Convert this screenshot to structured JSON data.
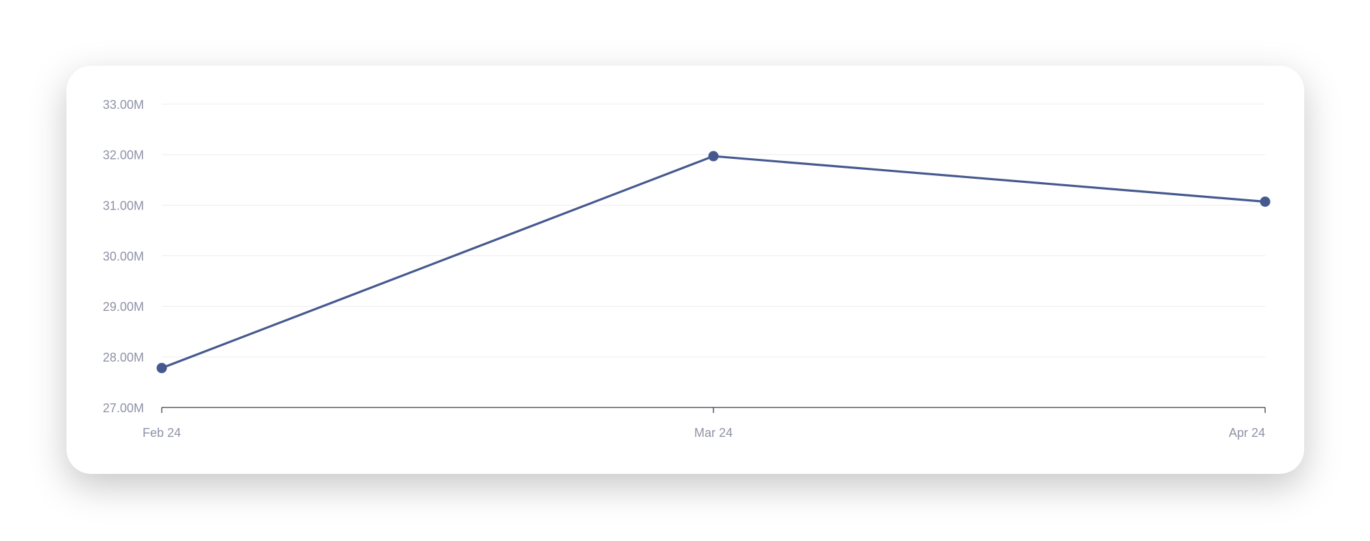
{
  "chart_data": {
    "type": "line",
    "categories": [
      "Feb 24",
      "Mar 24",
      "Apr 24"
    ],
    "series": [
      {
        "color": "#46598f",
        "values": [
          27780000,
          31970000,
          31070000
        ]
      }
    ],
    "ylim": [
      27000000,
      33000000
    ],
    "yticks": [
      {
        "value": 27000000,
        "label": "27.00M"
      },
      {
        "value": 28000000,
        "label": "28.00M"
      },
      {
        "value": 29000000,
        "label": "29.00M"
      },
      {
        "value": 30000000,
        "label": "30.00M"
      },
      {
        "value": 31000000,
        "label": "31.00M"
      },
      {
        "value": 32000000,
        "label": "32.00M"
      },
      {
        "value": 33000000,
        "label": "33.00M"
      }
    ],
    "grid": true
  }
}
